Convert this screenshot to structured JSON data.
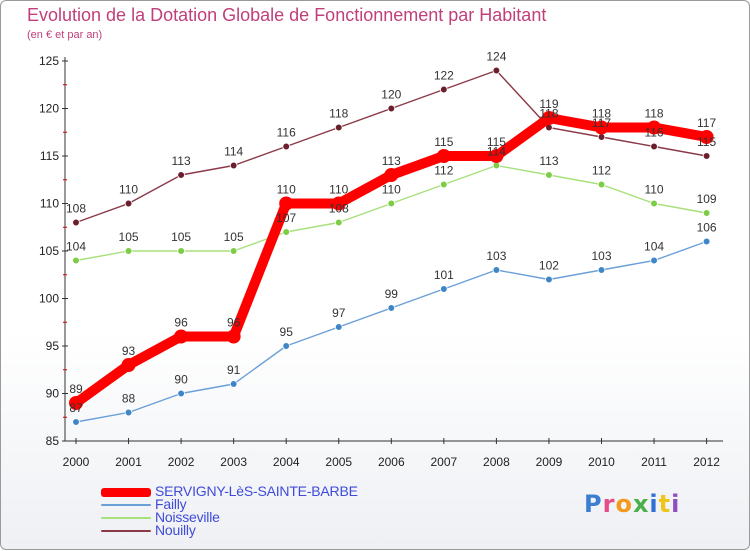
{
  "title": "Evolution de la Dotation Globale de Fonctionnement par Habitant",
  "subtitle": "(en € et par an)",
  "logo": {
    "text": "Proxiti",
    "letter_colors": [
      "#3c7fd0",
      "#e44d8a",
      "#f39a1c",
      "#4bb04a",
      "#2f6fd6",
      "#f0c419",
      "#8c4fc0"
    ]
  },
  "chart_data": {
    "type": "line",
    "title": "Evolution de la Dotation Globale de Fonctionnement par Habitant",
    "subtitle": "(en € et par an)",
    "xlabel": "",
    "ylabel": "",
    "categories": [
      "2000",
      "2001",
      "2002",
      "2003",
      "2004",
      "2005",
      "2006",
      "2007",
      "2008",
      "2009",
      "2010",
      "2011",
      "2012"
    ],
    "ylim": [
      85,
      125
    ],
    "yticks": [
      85,
      90,
      95,
      100,
      105,
      110,
      115,
      120,
      125
    ],
    "grid": false,
    "legend_position": "bottom-left",
    "series": [
      {
        "name": "SERVIGNY-LèS-SAINTE-BARBE",
        "color": "#ff0000",
        "marker": "#ff0000",
        "emphasis": true,
        "values": [
          89,
          93,
          96,
          96,
          110,
          110,
          113,
          115,
          115,
          119,
          118,
          118,
          117
        ]
      },
      {
        "name": "Failly",
        "color": "#6a9fd8",
        "marker": "#3f86c8",
        "emphasis": false,
        "values": [
          87,
          88,
          90,
          91,
          95,
          97,
          99,
          101,
          103,
          102,
          103,
          104,
          106
        ]
      },
      {
        "name": "Noisseville",
        "color": "#a8e07c",
        "marker": "#7ccc46",
        "emphasis": false,
        "values": [
          104,
          105,
          105,
          105,
          107,
          108,
          110,
          112,
          114,
          113,
          112,
          110,
          109
        ]
      },
      {
        "name": "Nouilly",
        "color": "#8b3a48",
        "marker": "#6a1f2c",
        "emphasis": false,
        "values": [
          108,
          110,
          113,
          114,
          116,
          118,
          120,
          122,
          124,
          118,
          117,
          116,
          115
        ]
      }
    ]
  }
}
